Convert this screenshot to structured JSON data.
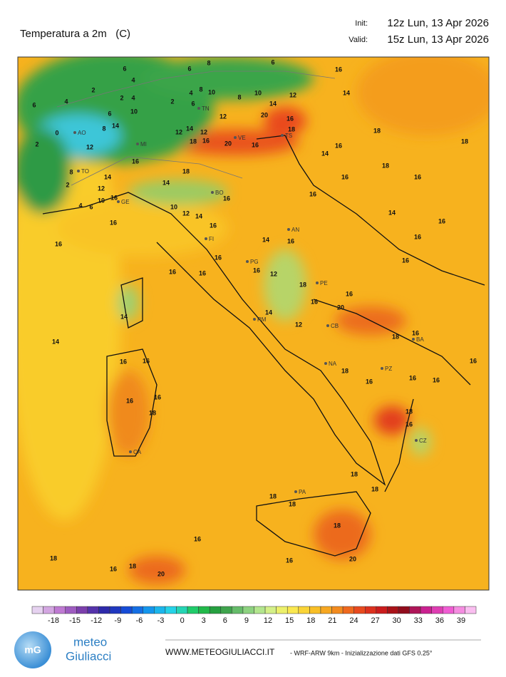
{
  "header": {
    "title": "Temperatura a 2m   (C)",
    "init_label": "Init:",
    "init_value": "12z Lun, 13 Apr 2026",
    "valid_label": "Valid:",
    "valid_value": "15z Lun, 13 Apr 2026"
  },
  "map": {
    "labels": [
      6,
      8,
      6,
      6,
      16,
      4,
      2,
      4,
      6,
      2,
      4,
      4,
      8,
      10,
      8,
      10,
      12,
      14,
      6,
      10,
      2,
      6,
      14,
      16,
      12,
      20,
      8,
      14,
      0,
      18,
      12,
      14,
      12,
      2,
      12,
      18,
      16,
      20,
      16,
      18,
      18,
      16,
      14,
      8,
      16,
      18,
      14,
      18,
      16,
      16,
      16,
      2,
      12,
      14,
      16,
      16,
      10,
      4,
      6,
      10,
      12,
      14,
      16,
      16,
      14,
      16,
      16,
      14,
      16,
      16,
      16,
      16,
      16,
      12,
      16,
      16,
      18,
      16,
      16,
      14,
      14,
      20,
      12,
      16,
      18,
      14,
      16,
      16,
      16,
      18,
      16,
      16,
      16,
      16,
      16,
      18,
      18,
      16,
      18,
      18,
      18,
      18,
      18,
      16,
      18,
      16,
      20,
      18,
      16,
      20
    ],
    "cities": [
      "AO",
      "TO",
      "MI",
      "TN",
      "VE",
      "TS",
      "GE",
      "BO",
      "FI",
      "AN",
      "PG",
      "PE",
      "RM",
      "CB",
      "NA",
      "BA",
      "PZ",
      "CA",
      "CZ",
      "PA"
    ]
  },
  "colorbar": {
    "labels": [
      -18,
      -15,
      -12,
      -9,
      -6,
      -3,
      0,
      3,
      6,
      9,
      12,
      15,
      18,
      21,
      24,
      27,
      30,
      33,
      36,
      39
    ]
  },
  "footer": {
    "logo_mark": "mG",
    "logo_line1": "meteo",
    "logo_line2": "Giuliacci",
    "site": "WWW.METEOGIULIACCI.IT",
    "note": "- WRF-ARW 9km - Inizializzazione dati GFS 0.25°"
  }
}
